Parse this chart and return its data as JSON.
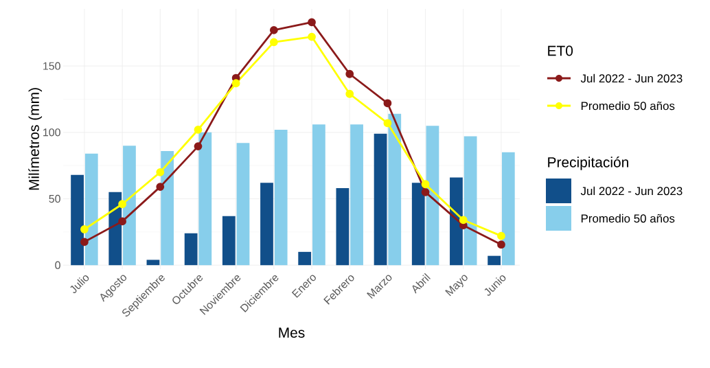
{
  "chart_data": {
    "type": "bar",
    "xlabel": "Mes",
    "ylabel": "Milímetros (mm)",
    "legend_title": [
      "ET0",
      "Precipitación"
    ],
    "categories": [
      "Julio",
      "Agosto",
      "Septiembre",
      "Octubre",
      "Noviembre",
      "Diciembre",
      "Enero",
      "Febrero",
      "Marzo",
      "Abril",
      "Mayo",
      "Junio"
    ],
    "series": [
      {
        "name": "Jul 2022 - Jun 2023",
        "color": "#114f8a",
        "values": [
          68,
          55,
          4,
          24,
          37,
          62,
          10,
          58,
          99,
          62,
          66,
          7
        ]
      },
      {
        "name": "Promedio 50 años",
        "color": "#87ceeb",
        "values": [
          84,
          90,
          86,
          100,
          92,
          102,
          106,
          106,
          114,
          105,
          97,
          85
        ]
      },
      {
        "name": "Jul 2022 - Jun 2023",
        "type": "line",
        "color": "#8b1a1a",
        "values": [
          17.5,
          33,
          59,
          89.5,
          141,
          177,
          183,
          144,
          122,
          55,
          30,
          15.5
        ]
      },
      {
        "name": "Promedio 50 años",
        "type": "line",
        "color": "#ffff00",
        "values": [
          27,
          46,
          70,
          102,
          137,
          168,
          172,
          129,
          107,
          61,
          34,
          22
        ]
      }
    ],
    "ylim": [
      -3,
      193
    ],
    "yticks": [
      0,
      50,
      100,
      150
    ],
    "grid": true,
    "legend": "right",
    "marker": "circle"
  }
}
